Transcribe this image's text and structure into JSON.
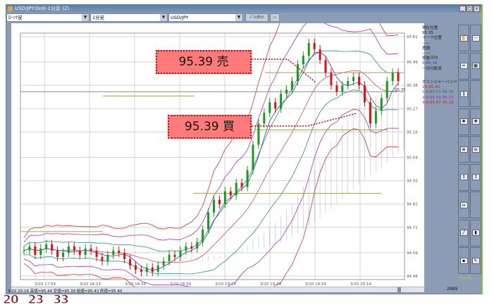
{
  "window": {
    "title": "USD/JPY(bid)-1分足 (2)",
    "controls": [
      "_",
      "□",
      "×"
    ]
  },
  "toolbar": {
    "chart_type": "ﾛｰｿｸ足",
    "timeframe": "1分足",
    "symbol": "USD/JPY",
    "button1": "ﾊﾟﾈﾙ表示",
    "button2": "▭"
  },
  "chart_data": {
    "type": "candlestick",
    "y_ticks": [
      "95.61",
      "95.49",
      "95.38",
      "95.27",
      "95.16",
      "95.04",
      "94.93",
      "94.82",
      "94.71",
      "94.59",
      "94.48"
    ],
    "ylim": [
      94.48,
      95.61
    ],
    "x_ticks": [
      "3/20 17:54",
      "3/20 18:14",
      "3/20 18:34",
      "3/20 18:54",
      "3/20 19:14",
      "3/20 19:34",
      "3/20 19:54",
      "3/20 20:14"
    ],
    "closes": [
      94.6,
      94.62,
      94.58,
      94.61,
      94.63,
      94.6,
      94.57,
      94.59,
      94.62,
      94.6,
      94.58,
      94.61,
      94.6,
      94.57,
      94.55,
      94.58,
      94.6,
      94.59,
      94.56,
      94.53,
      94.51,
      94.5,
      94.52,
      94.5,
      94.53,
      94.55,
      94.58,
      94.57,
      94.6,
      94.62,
      94.61,
      94.64,
      94.7,
      94.78,
      94.84,
      94.82,
      94.88,
      94.86,
      94.92,
      94.9,
      94.98,
      95.1,
      95.2,
      95.25,
      95.3,
      95.27,
      95.34,
      95.36,
      95.4,
      95.48,
      95.52,
      95.58,
      95.55,
      95.5,
      95.44,
      95.38,
      95.35,
      95.38,
      95.4,
      95.42,
      95.38,
      95.3,
      95.2,
      95.26,
      95.32,
      95.4,
      95.44,
      95.4
    ],
    "current_price": "95.35",
    "horizontal_lines": [
      95.44,
      95.33,
      95.17,
      94.87,
      94.69
    ],
    "colors": {
      "up": "#1a9a1a",
      "down": "#e01010",
      "band1": "#2a8a8a",
      "band2": "#b030c0",
      "band3": "#e03030",
      "ma": "#3a3ad0",
      "cloud": "#8a8ad0",
      "hline": "#a0a050"
    }
  },
  "orders": {
    "sell": "95.39 売",
    "buy": "95.39 買"
  },
  "side_info": {
    "current_label": "現在位置",
    "current_value": "95.35",
    "mark_label": "マーク位置",
    "mark_value": "------",
    "diff_label": "差額",
    "diff_value": "------",
    "ma_label": "移動平均",
    "ma_value": "5:95.39",
    "ichimoku_label": "一目均衡表",
    "ichimoku_value": "",
    "bb_label": "ボリンジャーバンド",
    "bb_mid": "25:95.43",
    "bb_1": "1.0:95.51 95.35",
    "bb_2": "2.0:95.59 95.27",
    "bb_3": "3.0:95.67 95.19"
  },
  "side_buttons": [
    "hand",
    "dots",
    "ma",
    "board",
    "candle",
    "",
    "cross",
    "cross",
    "zoom-in",
    "zoom-out",
    "scale-up",
    "scale-down",
    "scale",
    "",
    "trendline",
    "bar",
    "candle-select",
    "pencil"
  ],
  "tl_label": "TLの色",
  "clock": {
    "h": "20",
    "m": "23",
    "s": "33"
  },
  "status": "3/20 20:16  高値=95.44 安値=95.39 始値=95.43 終値=95.40",
  "bar_count": "2989"
}
